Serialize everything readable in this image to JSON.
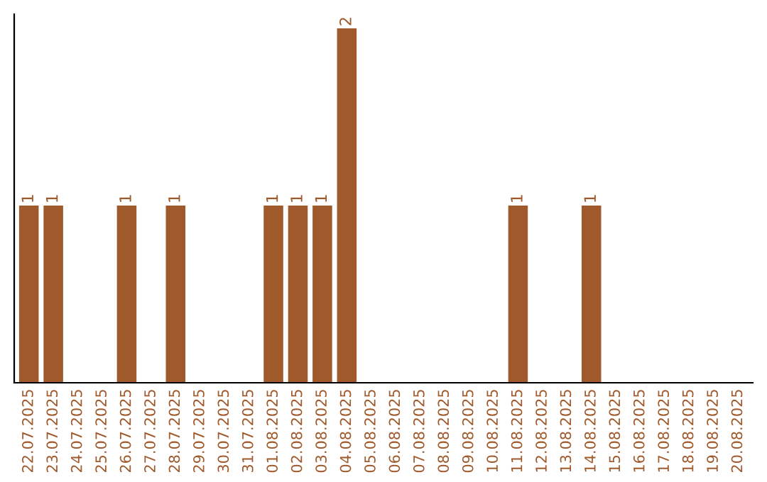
{
  "chart_data": {
    "type": "bar",
    "categories": [
      "22.07.2025",
      "23.07.2025",
      "24.07.2025",
      "25.07.2025",
      "26.07.2025",
      "27.07.2025",
      "28.07.2025",
      "29.07.2025",
      "30.07.2025",
      "31.07.2025",
      "01.08.2025",
      "02.08.2025",
      "03.08.2025",
      "04.08.2025",
      "05.08.2025",
      "06.08.2025",
      "07.08.2025",
      "08.08.2025",
      "09.08.2025",
      "10.08.2025",
      "11.08.2025",
      "12.08.2025",
      "13.08.2025",
      "14.08.2025",
      "15.08.2025",
      "16.08.2025",
      "17.08.2025",
      "18.08.2025",
      "19.08.2025",
      "20.08.2025"
    ],
    "values": [
      1,
      1,
      0,
      0,
      1,
      0,
      1,
      0,
      0,
      0,
      1,
      1,
      1,
      2,
      0,
      0,
      0,
      0,
      0,
      0,
      1,
      0,
      0,
      1,
      0,
      0,
      0,
      0,
      0,
      0
    ],
    "value_labels": [
      "1",
      "1",
      null,
      null,
      "1",
      null,
      "1",
      null,
      null,
      null,
      "1",
      "1",
      "1",
      "2",
      null,
      null,
      null,
      null,
      null,
      null,
      "1",
      null,
      null,
      "1",
      null,
      null,
      null,
      null,
      null,
      null
    ],
    "color": "#a0592a",
    "grid": false,
    "legend": false
  }
}
